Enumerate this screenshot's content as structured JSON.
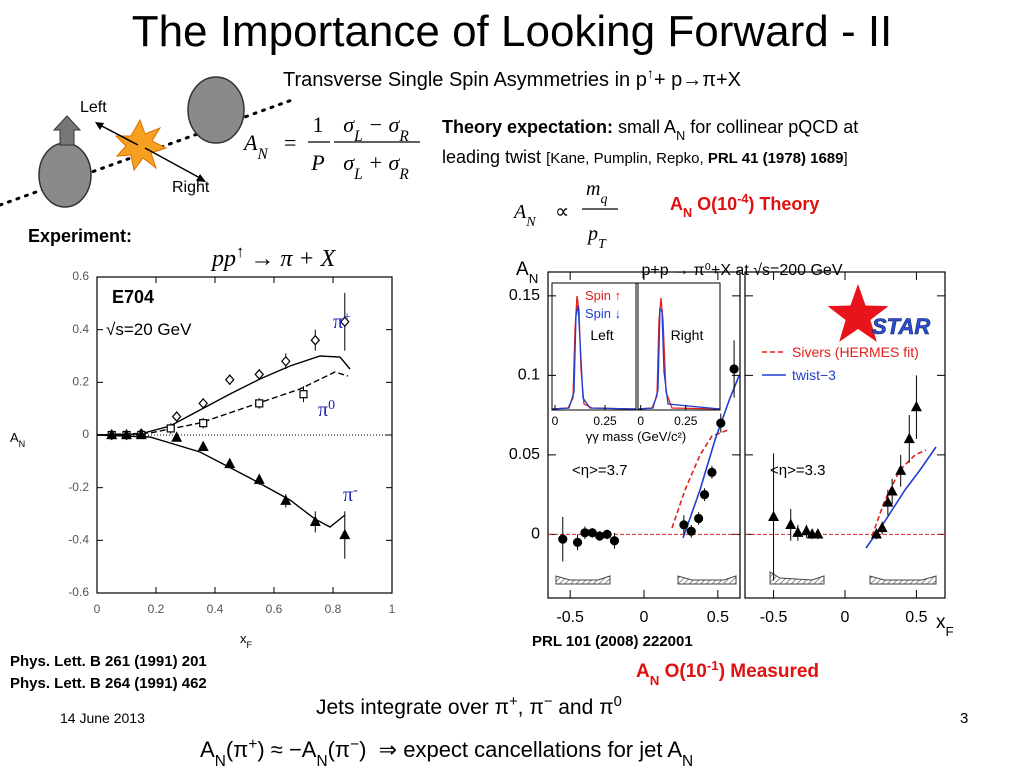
{
  "title": "The Importance of Looking Forward - II",
  "subtitle": {
    "pre": "Transverse Single Spin Asymmetries in p",
    "sup": "↑",
    "post": "+ p→π+X"
  },
  "diagram": {
    "left": "Left",
    "right": "Right"
  },
  "formula_an": {
    "lhs": "A",
    "lhs_sub": "N",
    "eq": "=",
    "one": "1",
    "pol": "P",
    "num": [
      {
        "t": "σ"
      },
      {
        "t": "L",
        "sub": true
      },
      {
        "t": " − σ"
      },
      {
        "t": "R",
        "sub": true
      }
    ],
    "den": [
      {
        "t": "σ"
      },
      {
        "t": "L",
        "sub": true
      },
      {
        "t": " + σ"
      },
      {
        "t": "R",
        "sub": true
      }
    ]
  },
  "theory": {
    "label": "Theory expectation:",
    "text1": " small A",
    "sub": "N",
    "text2": " for collinear pQCD at",
    "line2": "leading twist ",
    "ref_open": "[Kane, Pumplin, Repko, ",
    "ref_bold": "PRL 41 (1978) 1689",
    "ref_close": "]"
  },
  "scaling": {
    "lhs": "A",
    "lhs_sub": "N",
    "prop": "∝",
    "num": "m",
    "num_sub": "q",
    "den": "p",
    "den_sub": "T"
  },
  "theory_order": {
    "a": "A",
    "sub": "N",
    "text": " O(10",
    "sup": "-4",
    "close": ") Theory"
  },
  "experiment": "Experiment:",
  "reaction": {
    "pre": "pp",
    "sup": "↑",
    "post": " → π + X"
  },
  "references_e704": [
    "Phys. Lett. B 261 (1991) 201",
    "Phys. Lett. B 264 (1991) 462"
  ],
  "star_ref": "PRL 101 (2008) 222001",
  "measured": {
    "a": "A",
    "sub": "N",
    "text": " O(10",
    "sup": "-1",
    "close": ") Measured"
  },
  "jets": [
    {
      "t": "Jets integrate over π"
    },
    {
      "t": "+",
      "sup": true
    },
    {
      "t": ", π"
    },
    {
      "t": "−",
      "sup": true
    },
    {
      "t": " and π"
    },
    {
      "t": "0",
      "sup": true
    }
  ],
  "relation": [
    {
      "t": "A"
    },
    {
      "t": "N",
      "sub": true
    },
    {
      "t": "(π"
    },
    {
      "t": "+",
      "sup": true
    },
    {
      "t": ") ≈ −A"
    },
    {
      "t": "N",
      "sub": true
    },
    {
      "t": "(π"
    },
    {
      "t": "−",
      "sup": true
    },
    {
      "t": ")  ⇒ expect cancellations for jet A"
    },
    {
      "t": "N",
      "sub": true
    }
  ],
  "footer": {
    "date": "14 June 2013",
    "page": "3"
  },
  "chart_data": [
    {
      "type": "scatter",
      "annotations": [
        "E704",
        "√s=20 GeV"
      ],
      "xlabel": {
        "main": "x",
        "sub": "F"
      },
      "ylabel": {
        "main": "A",
        "sub": "N"
      },
      "xlim": [
        0,
        1
      ],
      "xticks": [
        0,
        0.2,
        0.4,
        0.6,
        0.8,
        1
      ],
      "ylim": [
        -0.6,
        0.6
      ],
      "yticks": [
        -0.6,
        -0.4,
        -0.2,
        0,
        0.2,
        0.4,
        0.6
      ],
      "zero_line_color": "#000000",
      "series": [
        {
          "name": "π",
          "name_sup": "+",
          "color": "#000000",
          "label_color": "#1f1fb0",
          "marker": "diamond",
          "filled": false,
          "x": [
            0.05,
            0.1,
            0.15,
            0.27,
            0.36,
            0.45,
            0.55,
            0.64,
            0.74,
            0.84
          ],
          "values": [
            0,
            0,
            0.005,
            0.07,
            0.12,
            0.21,
            0.23,
            0.28,
            0.36,
            0.43
          ],
          "errors": [
            0.01,
            0.01,
            0.01,
            0.02,
            0.02,
            0.02,
            0.02,
            0.03,
            0.04,
            0.11
          ]
        },
        {
          "name": "π",
          "name_sup": "0",
          "color": "#000000",
          "label_color": "#1f1fb0",
          "marker": "square",
          "filled": false,
          "x": [
            0.05,
            0.1,
            0.15,
            0.25,
            0.36,
            0.55,
            0.7
          ],
          "values": [
            0,
            0,
            0,
            0.025,
            0.045,
            0.12,
            0.155
          ],
          "errors": [
            0.01,
            0.01,
            0.01,
            0.02,
            0.02,
            0.02,
            0.03
          ]
        },
        {
          "name": "π",
          "name_sup": "-",
          "color": "#000000",
          "label_color": "#1f1fb0",
          "marker": "triangle",
          "filled": true,
          "x": [
            0.05,
            0.1,
            0.15,
            0.27,
            0.36,
            0.45,
            0.55,
            0.64,
            0.74,
            0.84
          ],
          "values": [
            0,
            0,
            0,
            -0.01,
            -0.045,
            -0.11,
            -0.17,
            -0.25,
            -0.33,
            -0.38
          ],
          "errors": [
            0.01,
            0.01,
            0.01,
            0.01,
            0.015,
            0.015,
            0.02,
            0.025,
            0.04,
            0.09
          ]
        }
      ]
    },
    {
      "type": "scatter",
      "title": "p+p → π⁰+X at √s=200 GeV",
      "annotations": [
        "<η>=3.7"
      ],
      "ylabel": {
        "main": "A",
        "sub": "N"
      },
      "xlim": [
        -0.65,
        0.65
      ],
      "xticks": [
        -0.5,
        0,
        0.5
      ],
      "ylim": [
        -0.04,
        0.165
      ],
      "yticks": [
        0,
        0.05,
        0.1,
        0.15
      ],
      "zero_line_color": "#d62728",
      "series": [
        {
          "color": "#000000",
          "marker": "circle",
          "filled": true,
          "x": [
            -0.55,
            -0.45,
            -0.4,
            -0.35,
            -0.3,
            -0.25,
            -0.2,
            0.27,
            0.32,
            0.37,
            0.41,
            0.46,
            0.52,
            0.61
          ],
          "values": [
            -0.003,
            -0.005,
            0.001,
            0.001,
            -0.001,
            0,
            -0.004,
            0.006,
            0.002,
            0.01,
            0.025,
            0.039,
            0.07,
            0.104
          ],
          "errors": [
            0.014,
            0.005,
            0.004,
            0.003,
            0.003,
            0.003,
            0.005,
            0.006,
            0.004,
            0.004,
            0.004,
            0.004,
            0.006,
            0.018
          ]
        }
      ],
      "inset": {
        "spin_up": "Spin ↑",
        "spin_down": "Spin ↓",
        "spin_up_color": "#e0201c",
        "spin_down_color": "#1f3fd0",
        "xlabel": "γγ mass (GeV/c²)",
        "panels": [
          {
            "label": "Left",
            "xlim": [
              -0.015,
              0.405
            ],
            "xticks": [
              0,
              0.25
            ]
          },
          {
            "label": "Right",
            "xlim": [
              -0.015,
              0.44
            ],
            "xticks": [
              0,
              0.25
            ]
          }
        ]
      }
    },
    {
      "type": "scatter",
      "annotations": [
        "<η>=3.3"
      ],
      "xlabel": {
        "main": "x",
        "sub": "F"
      },
      "xlim": [
        -0.7,
        0.7
      ],
      "xticks": [
        -0.5,
        0,
        0.5
      ],
      "ylim": [
        -0.04,
        0.165
      ],
      "yticks": [
        0,
        0.05,
        0.1,
        0.15
      ],
      "zero_line_color": "#d62728",
      "series": [
        {
          "color": "#000000",
          "marker": "triangle",
          "filled": true,
          "x": [
            -0.5,
            -0.38,
            -0.33,
            -0.27,
            -0.23,
            -0.19,
            0.22,
            0.26,
            0.3,
            0.33,
            0.39,
            0.45,
            0.5
          ],
          "values": [
            0.011,
            0.006,
            0.001,
            0.002,
            0,
            0,
            0,
            0.004,
            0.02,
            0.027,
            0.04,
            0.06,
            0.08
          ],
          "errors": [
            0.04,
            0.01,
            0.005,
            0.004,
            0.003,
            0.003,
            0.003,
            0.004,
            0.008,
            0.008,
            0.01,
            0.015,
            0.02
          ]
        }
      ],
      "legend": [
        {
          "label": "Sivers (HERMES fit)",
          "color": "#e0201c",
          "dash": true
        },
        {
          "label": "twist−3",
          "color": "#1f3fd0",
          "dash": false
        }
      ],
      "logo": "STAR"
    }
  ]
}
